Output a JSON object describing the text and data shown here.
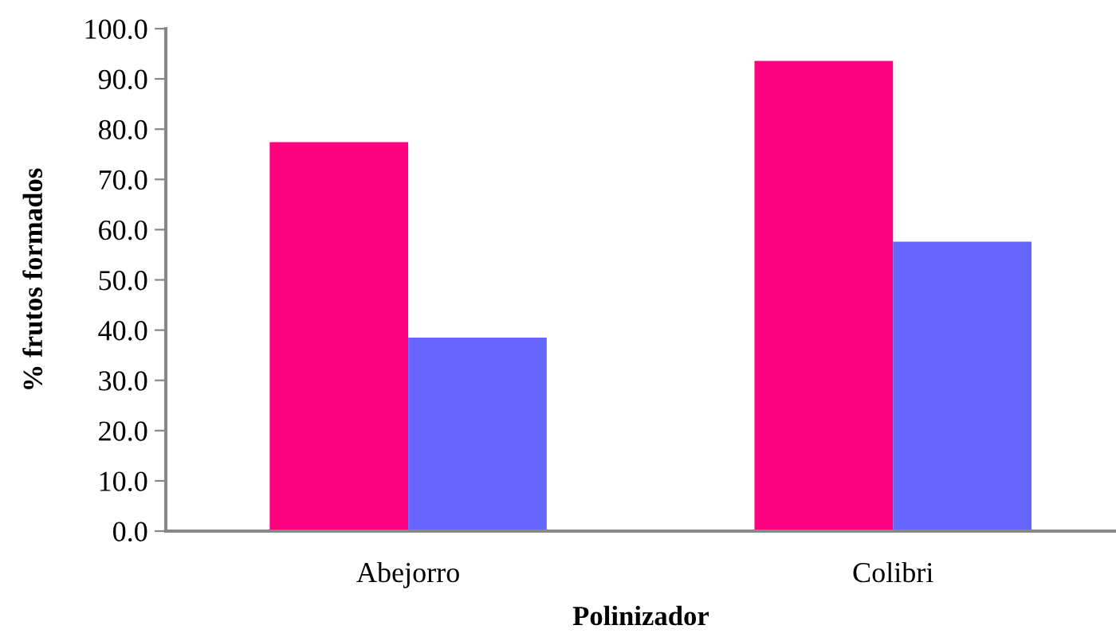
{
  "chart_data": {
    "type": "bar",
    "xlabel": "Polinizador",
    "ylabel": "% frutos formados",
    "categories": [
      "Abejorro",
      "Colibri"
    ],
    "series": [
      {
        "color": "#ff0080",
        "values": [
          77.4,
          93.6
        ]
      },
      {
        "color": "#6666ff",
        "values": [
          38.5,
          57.6
        ]
      }
    ],
    "ylim": [
      0,
      100
    ],
    "yticks": [
      {
        "value": 0,
        "label": "0.0"
      },
      {
        "value": 10,
        "label": "10.0"
      },
      {
        "value": 20,
        "label": "20.0"
      },
      {
        "value": 30,
        "label": "30.0"
      },
      {
        "value": 40,
        "label": "40.0"
      },
      {
        "value": 50,
        "label": "50.0"
      },
      {
        "value": 60,
        "label": "60.0"
      },
      {
        "value": 70,
        "label": "70.0"
      },
      {
        "value": 80,
        "label": "80.0"
      },
      {
        "value": 90,
        "label": "90.0"
      },
      {
        "value": 100,
        "label": "100.0"
      }
    ]
  }
}
